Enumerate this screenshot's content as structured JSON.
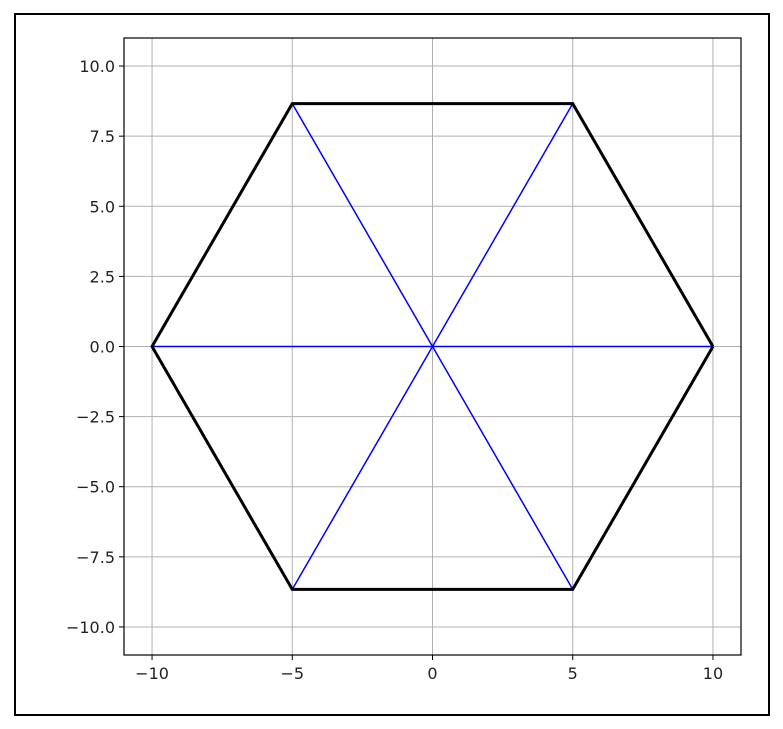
{
  "chart_data": {
    "type": "line",
    "title": "",
    "xlabel": "",
    "ylabel": "",
    "xlim": [
      -11,
      11
    ],
    "ylim": [
      -11,
      11
    ],
    "grid": true,
    "aspect": "equal",
    "xticks": [
      -10,
      -5,
      0,
      5,
      10
    ],
    "xtick_labels": [
      "−10",
      "−5",
      "0",
      "5",
      "10"
    ],
    "yticks": [
      -10,
      -7.5,
      -5,
      -2.5,
      0,
      2.5,
      5,
      7.5,
      10
    ],
    "ytick_labels": [
      "−10.0",
      "−7.5",
      "−5.0",
      "−2.5",
      "0.0",
      "2.5",
      "5.0",
      "7.5",
      "10.0"
    ],
    "series": [
      {
        "kind": "hexagon-outline",
        "color": "#000000",
        "x": [
          10,
          5,
          -5,
          -10,
          -5,
          5,
          10
        ],
        "y": [
          0,
          8.66,
          8.66,
          0,
          -8.66,
          -8.66,
          0
        ]
      },
      {
        "kind": "diagonals",
        "color": "#0000ff",
        "segments": [
          {
            "x": [
              -10,
              10
            ],
            "y": [
              0,
              0
            ]
          },
          {
            "x": [
              -5,
              5
            ],
            "y": [
              8.66,
              -8.66
            ]
          },
          {
            "x": [
              5,
              -5
            ],
            "y": [
              8.66,
              -8.66
            ]
          }
        ]
      }
    ]
  }
}
